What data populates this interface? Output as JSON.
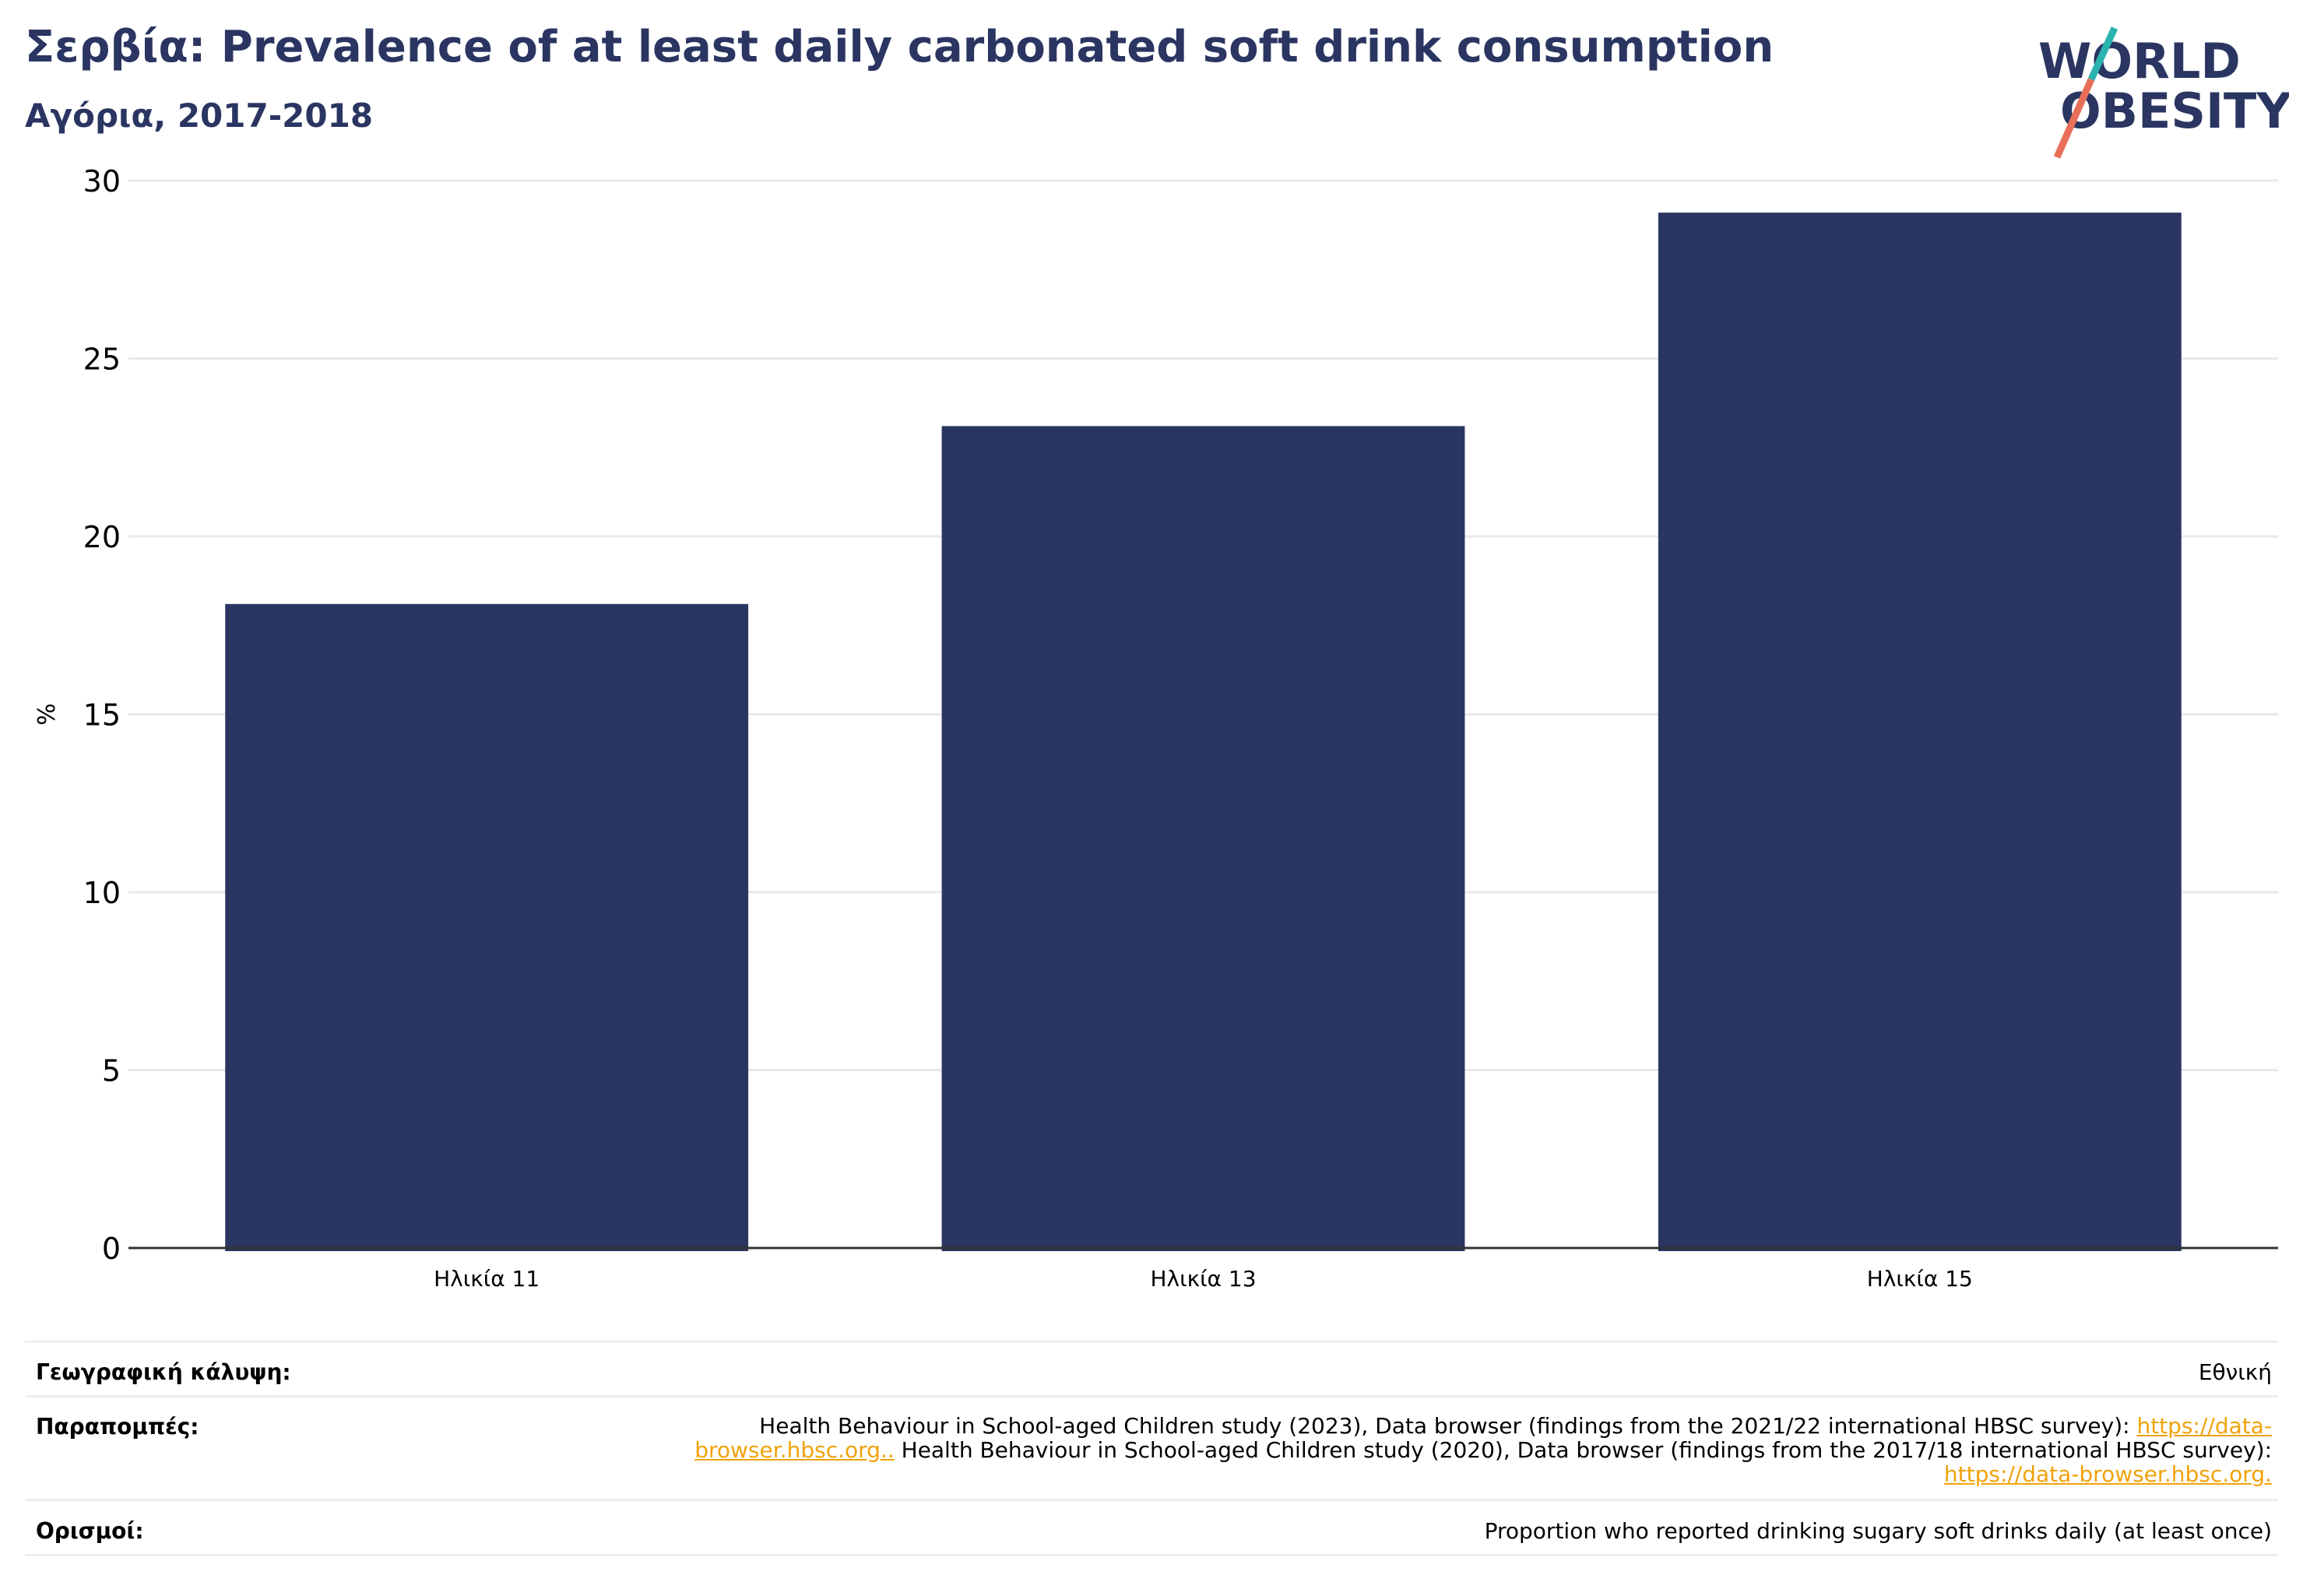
{
  "header": {
    "title": "Σερβία: Prevalence of at least daily carbonated soft drink consumption",
    "subtitle": "Αγόρια, 2017-2018"
  },
  "logo": {
    "line1": "WORLD",
    "line2": "OBESITY",
    "accent_teal": "#2bb3b0",
    "accent_coral": "#e8705a",
    "color": "#2a3562"
  },
  "chart_data": {
    "type": "bar",
    "categories": [
      "Ηλικία 11",
      "Ηλικία 13",
      "Ηλικία 15"
    ],
    "values": [
      18.1,
      23.1,
      29.1
    ],
    "ylabel": "%",
    "ylim": [
      0,
      30
    ],
    "yticks": [
      0,
      5,
      10,
      15,
      20,
      25,
      30
    ],
    "grid": true,
    "bar_color": "#2a3562"
  },
  "footer": {
    "coverage_label": "Γεωγραφική κάλυψη:",
    "coverage_value": "Εθνική",
    "refs_label": "Παραπομπές:",
    "refs_text1": "Health Behaviour in School-aged Children study (2023), Data browser (findings from the 2021/22 international HBSC survey): ",
    "refs_link1": "https://data-browser.hbsc.org..",
    "refs_text2": " Health Behaviour in School-aged Children study (2020), Data browser (findings from the 2017/18 international HBSC survey): ",
    "refs_link2": "https://data-browser.hbsc.org.",
    "definitions_label": "Ορισμοί:",
    "definitions_value": "Proportion who reported drinking sugary soft drinks daily (at least once)"
  }
}
